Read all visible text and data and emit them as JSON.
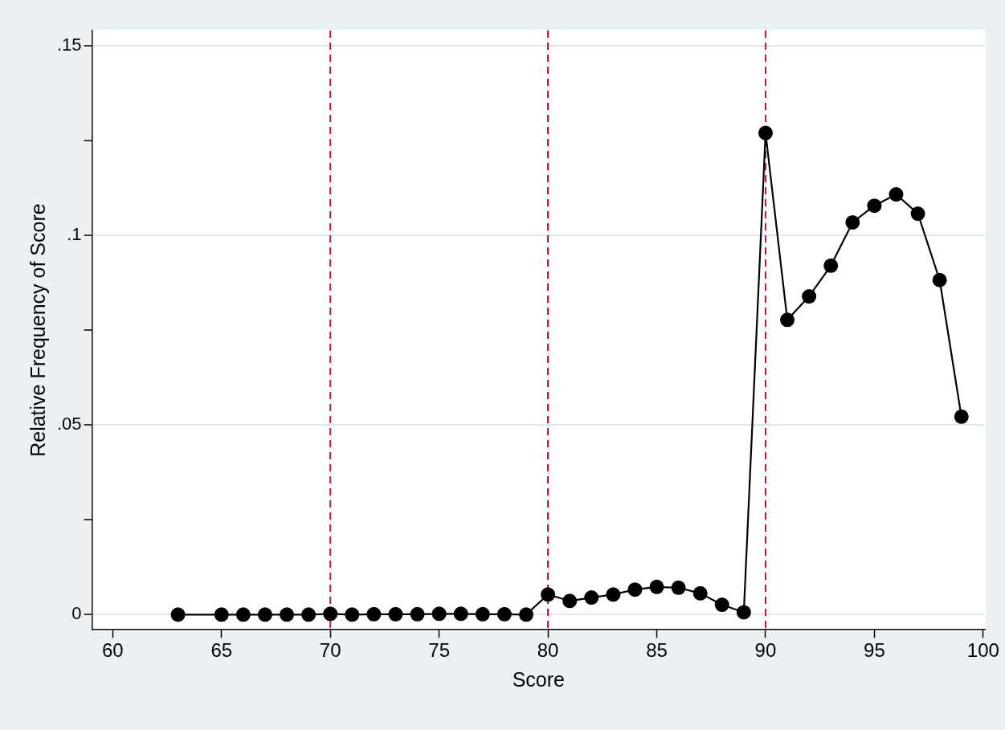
{
  "chart_data": {
    "type": "line",
    "xlabel": "Score",
    "ylabel": "Relative Frequency of Score",
    "x": [
      63,
      65,
      66,
      67,
      68,
      69,
      70,
      71,
      72,
      73,
      74,
      75,
      76,
      77,
      78,
      79,
      80,
      81,
      82,
      83,
      84,
      85,
      86,
      87,
      88,
      89,
      90,
      91,
      92,
      93,
      94,
      95,
      96,
      97,
      98,
      99
    ],
    "series": [
      {
        "color": "#000000",
        "values": [
          0,
          0,
          0,
          0,
          0,
          0,
          0.0002,
          0,
          0.0001,
          0.0001,
          0.0001,
          0.0002,
          0.0002,
          0.0001,
          0.0001,
          0,
          0.0053,
          0.0036,
          0.0045,
          0.0053,
          0.0066,
          0.0073,
          0.0071,
          0.0056,
          0.0026,
          0.0006,
          0.127,
          0.0777,
          0.0839,
          0.092,
          0.1034,
          0.1078,
          0.1108,
          0.1057,
          0.0882,
          0.0522
        ]
      }
    ],
    "xlim": [
      59.05,
      100.08
    ],
    "xticks": [
      60,
      65,
      70,
      75,
      80,
      85,
      90,
      95,
      100
    ],
    "ylim": [
      -0.004,
      0.154
    ],
    "yticks": [
      {
        "value": 0,
        "label": "0"
      },
      {
        "value": 0.025,
        "label": null
      },
      {
        "value": 0.05,
        "label": ".05"
      },
      {
        "value": 0.075,
        "label": null
      },
      {
        "value": 0.1,
        "label": ".1"
      },
      {
        "value": 0.125,
        "label": null
      },
      {
        "value": 0.15,
        "label": ".15"
      }
    ],
    "ref_lines": [
      {
        "axis": "x",
        "value": 70,
        "color": "#c8102e",
        "line_style": "dashed"
      },
      {
        "axis": "x",
        "value": 80,
        "color": "#c8102e",
        "line_style": "dashed"
      },
      {
        "axis": "x",
        "value": 90,
        "color": "#c8102e",
        "line_style": "dashed"
      }
    ],
    "grid": "y",
    "legend": false,
    "marker": "circle",
    "line_style": "solid"
  }
}
